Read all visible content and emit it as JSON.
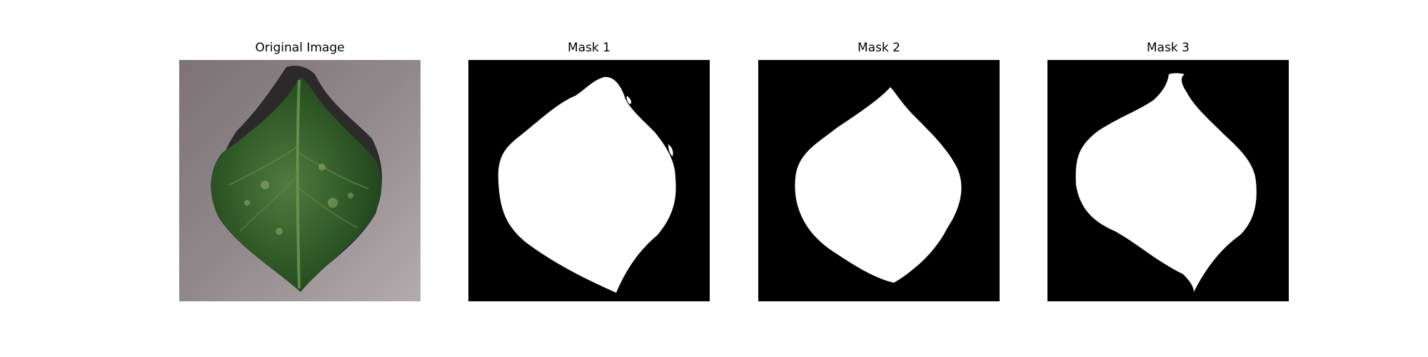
{
  "figure": {
    "panels": [
      {
        "title": "Original Image",
        "kind": "photo",
        "subject": "leaf-photo"
      },
      {
        "title": "Mask 1",
        "kind": "mask"
      },
      {
        "title": "Mask 2",
        "kind": "mask"
      },
      {
        "title": "Mask 3",
        "kind": "mask"
      }
    ]
  },
  "colors": {
    "mask_background": "#000000",
    "mask_foreground": "#ffffff",
    "photo_background": "#8f8588",
    "leaf_green": "#2f5a27"
  }
}
